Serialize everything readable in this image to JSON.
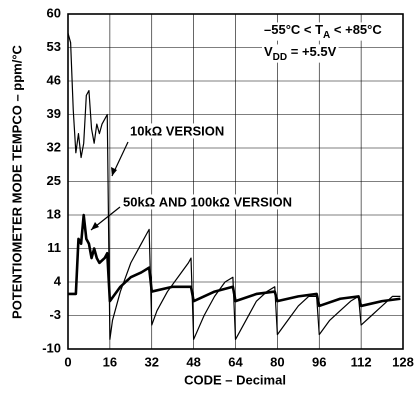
{
  "chart_data": {
    "type": "line",
    "x_label": "CODE – Decimal",
    "y_label": "POTENTIOMETER MODE TEMPCO – ppm/°C",
    "conditions": [
      [
        "–55°C < T",
        "A",
        " < +85°C"
      ],
      [
        "V",
        "DD",
        " = +5.5V"
      ]
    ],
    "xlim": [
      0,
      128
    ],
    "xticks": [
      0,
      16,
      32,
      48,
      64,
      80,
      96,
      112,
      128
    ],
    "ylim": [
      -10,
      60
    ],
    "yticks": [
      -10,
      -3,
      4,
      11,
      18,
      25,
      32,
      39,
      46,
      53,
      60
    ],
    "grid": true,
    "series": [
      {
        "name": "10kΩ VERSION",
        "color": "#000000",
        "width": 1.2,
        "x": [
          0,
          1,
          2,
          3,
          4,
          5,
          6,
          7,
          8,
          9,
          10,
          11,
          12,
          13,
          14,
          15,
          16,
          17,
          20,
          24,
          28,
          30,
          31,
          32,
          34,
          38,
          42,
          46,
          47,
          48,
          52,
          56,
          60,
          63,
          64,
          68,
          72,
          76,
          79,
          80,
          84,
          88,
          92,
          95,
          96,
          100,
          104,
          108,
          111,
          112,
          116,
          120,
          124,
          127
        ],
        "values": [
          56,
          54,
          40,
          31,
          35,
          30,
          33,
          43,
          44,
          36,
          33,
          37,
          35,
          37,
          38,
          39,
          -8,
          -4,
          2,
          8,
          12,
          14,
          15,
          -5,
          -2,
          2,
          5,
          8,
          9,
          -8,
          -3,
          1,
          4,
          5,
          -8,
          -4,
          0,
          2,
          3,
          -7,
          -4,
          -1,
          1,
          1,
          -7,
          -4,
          -2,
          0,
          1,
          -5,
          -3,
          -1,
          1,
          1
        ]
      },
      {
        "name": "50kΩ AND 100kΩ VERSION",
        "color": "#000000",
        "width": 2.6,
        "x": [
          0,
          3,
          4,
          5,
          6,
          7,
          8,
          9,
          10,
          11,
          12,
          14,
          15,
          16,
          20,
          24,
          28,
          31,
          32,
          40,
          47,
          48,
          56,
          63,
          64,
          72,
          79,
          80,
          88,
          95,
          96,
          104,
          111,
          112,
          120,
          127
        ],
        "values": [
          1.5,
          1.5,
          13,
          12,
          18,
          13,
          12,
          9,
          11,
          9,
          8,
          9,
          10,
          0,
          3,
          5,
          6,
          7,
          2,
          3,
          3,
          0,
          2,
          3,
          0,
          1.5,
          2,
          0,
          1,
          1.5,
          -1,
          0.5,
          1,
          -1,
          0,
          0.5
        ]
      }
    ]
  }
}
